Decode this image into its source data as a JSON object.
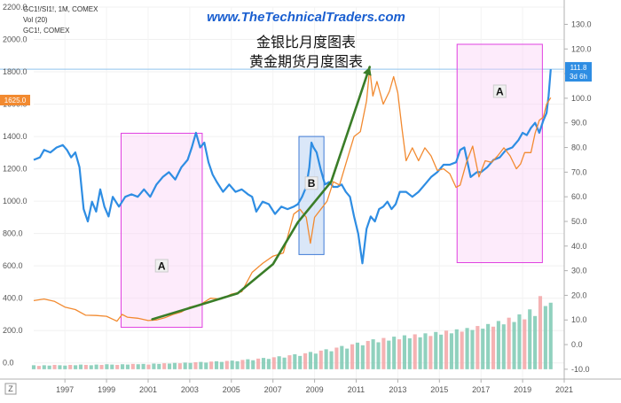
{
  "header": {
    "site": "www.TheTechnicalTraders.com",
    "line1": "GC1!/SI1!, 1M, COMEX",
    "line2": "Vol (20)",
    "line3": "GC1!, COMEX",
    "title1": "金银比月度图表",
    "title2": "黄金期货月度图表"
  },
  "colors": {
    "ratio": "#2e8de3",
    "gold": "#f28a30",
    "trend": "#3a7d28",
    "box_magenta": "#e040e0",
    "box_blue": "#3f7bd6",
    "hline": "#8fc3ee",
    "vol_up": "#7dc9b3",
    "vol_down": "#f3a4a6",
    "badge_gold": "#f28a30",
    "badge_ratio": "#2e8de3"
  },
  "chart_data": {
    "type": "line",
    "x_axis": {
      "label": "",
      "range": [
        1995.5,
        2021.0
      ],
      "ticks": [
        "1997",
        "1999",
        "2001",
        "2003",
        "2005",
        "2007",
        "2009",
        "2011",
        "2013",
        "2015",
        "2017",
        "2019",
        "2021"
      ],
      "corner_marker": "Z"
    },
    "left_axis": {
      "label": "",
      "range": [
        -100,
        2200
      ],
      "ticks": [
        "2200.0",
        "2000.0",
        "1800.0",
        "1600.0",
        "1400.0",
        "1200.0",
        "1000.0",
        "800.0",
        "600.0",
        "400.0",
        "200.0",
        "0.0"
      ],
      "current_badge": "1625.0"
    },
    "right_axis": {
      "label": "",
      "range": [
        -14,
        137
      ],
      "ticks": [
        "130.0",
        "120.0",
        "110.0",
        "100.0",
        "90.0",
        "80.0",
        "70.0",
        "60.0",
        "50.0",
        "40.0",
        "30.0",
        "20.0",
        "10.0",
        "0.0",
        "-10.0"
      ],
      "current_badge": "111.8",
      "current_badge_sub": "3d 6h",
      "horizontal_line": 111.8
    },
    "series": [
      {
        "axis": "right",
        "points": [
          [
            1995.5,
            75
          ],
          [
            1995.8,
            76
          ],
          [
            1996.0,
            79
          ],
          [
            1996.3,
            78
          ],
          [
            1996.6,
            80
          ],
          [
            1996.9,
            81
          ],
          [
            1997.1,
            79
          ],
          [
            1997.3,
            76
          ],
          [
            1997.5,
            78
          ],
          [
            1997.7,
            72
          ],
          [
            1997.9,
            55
          ],
          [
            1998.1,
            50
          ],
          [
            1998.3,
            58
          ],
          [
            1998.5,
            54
          ],
          [
            1998.7,
            63
          ],
          [
            1998.9,
            56
          ],
          [
            1999.1,
            52
          ],
          [
            1999.3,
            60
          ],
          [
            1999.6,
            56
          ],
          [
            1999.9,
            60
          ],
          [
            2000.2,
            61
          ],
          [
            2000.5,
            60
          ],
          [
            2000.8,
            63
          ],
          [
            2001.1,
            60
          ],
          [
            2001.4,
            65
          ],
          [
            2001.7,
            68
          ],
          [
            2002.0,
            70
          ],
          [
            2002.3,
            67
          ],
          [
            2002.6,
            72
          ],
          [
            2002.9,
            75
          ],
          [
            2003.1,
            80
          ],
          [
            2003.3,
            86
          ],
          [
            2003.5,
            80
          ],
          [
            2003.7,
            82
          ],
          [
            2003.9,
            74
          ],
          [
            2004.1,
            69
          ],
          [
            2004.3,
            66
          ],
          [
            2004.6,
            62
          ],
          [
            2004.9,
            65
          ],
          [
            2005.2,
            62
          ],
          [
            2005.5,
            63
          ],
          [
            2005.8,
            61
          ],
          [
            2006.0,
            60
          ],
          [
            2006.2,
            54
          ],
          [
            2006.5,
            58
          ],
          [
            2006.8,
            57
          ],
          [
            2007.1,
            53
          ],
          [
            2007.4,
            56
          ],
          [
            2007.7,
            55
          ],
          [
            2008.0,
            56
          ],
          [
            2008.2,
            57
          ],
          [
            2008.4,
            60
          ],
          [
            2008.6,
            64
          ],
          [
            2008.75,
            72
          ],
          [
            2008.85,
            82
          ],
          [
            2008.95,
            80
          ],
          [
            2009.1,
            78
          ],
          [
            2009.3,
            71
          ],
          [
            2009.5,
            65
          ],
          [
            2009.7,
            66
          ],
          [
            2009.9,
            64
          ],
          [
            2010.1,
            64
          ],
          [
            2010.3,
            65
          ],
          [
            2010.5,
            62
          ],
          [
            2010.7,
            60
          ],
          [
            2010.9,
            52
          ],
          [
            2011.1,
            45
          ],
          [
            2011.3,
            33
          ],
          [
            2011.5,
            47
          ],
          [
            2011.7,
            52
          ],
          [
            2011.9,
            50
          ],
          [
            2012.1,
            55
          ],
          [
            2012.3,
            56
          ],
          [
            2012.5,
            58
          ],
          [
            2012.7,
            55
          ],
          [
            2012.9,
            57
          ],
          [
            2013.1,
            62
          ],
          [
            2013.4,
            62
          ],
          [
            2013.7,
            60
          ],
          [
            2014.0,
            62
          ],
          [
            2014.3,
            65
          ],
          [
            2014.6,
            68
          ],
          [
            2014.9,
            70
          ],
          [
            2015.2,
            73
          ],
          [
            2015.5,
            73
          ],
          [
            2015.8,
            74
          ],
          [
            2016.0,
            79
          ],
          [
            2016.2,
            80
          ],
          [
            2016.5,
            68
          ],
          [
            2016.8,
            70
          ],
          [
            2017.0,
            70
          ],
          [
            2017.3,
            72
          ],
          [
            2017.6,
            75
          ],
          [
            2017.9,
            76
          ],
          [
            2018.2,
            79
          ],
          [
            2018.5,
            80
          ],
          [
            2018.8,
            83
          ],
          [
            2019.0,
            86
          ],
          [
            2019.2,
            85
          ],
          [
            2019.4,
            88
          ],
          [
            2019.6,
            90
          ],
          [
            2019.8,
            86
          ],
          [
            2020.0,
            91
          ],
          [
            2020.15,
            94
          ],
          [
            2020.25,
            101
          ],
          [
            2020.35,
            111.8
          ]
        ]
      },
      {
        "axis": "left",
        "points": [
          [
            1995.5,
            385
          ],
          [
            1996.0,
            395
          ],
          [
            1996.5,
            380
          ],
          [
            1997.0,
            345
          ],
          [
            1997.5,
            330
          ],
          [
            1998.0,
            295
          ],
          [
            1998.5,
            293
          ],
          [
            1999.0,
            288
          ],
          [
            1999.5,
            258
          ],
          [
            1999.75,
            300
          ],
          [
            2000.0,
            283
          ],
          [
            2000.5,
            276
          ],
          [
            2001.0,
            262
          ],
          [
            2001.4,
            266
          ],
          [
            2001.8,
            279
          ],
          [
            2002.2,
            300
          ],
          [
            2002.6,
            315
          ],
          [
            2003.0,
            345
          ],
          [
            2003.5,
            360
          ],
          [
            2004.0,
            400
          ],
          [
            2004.5,
            395
          ],
          [
            2005.0,
            425
          ],
          [
            2005.5,
            440
          ],
          [
            2006.0,
            560
          ],
          [
            2006.5,
            615
          ],
          [
            2007.0,
            660
          ],
          [
            2007.5,
            680
          ],
          [
            2008.0,
            920
          ],
          [
            2008.3,
            950
          ],
          [
            2008.6,
            900
          ],
          [
            2008.8,
            740
          ],
          [
            2009.0,
            900
          ],
          [
            2009.3,
            950
          ],
          [
            2009.6,
            1000
          ],
          [
            2009.9,
            1120
          ],
          [
            2010.2,
            1100
          ],
          [
            2010.5,
            1230
          ],
          [
            2010.9,
            1400
          ],
          [
            2011.2,
            1430
          ],
          [
            2011.5,
            1620
          ],
          [
            2011.65,
            1820
          ],
          [
            2011.8,
            1650
          ],
          [
            2012.0,
            1740
          ],
          [
            2012.3,
            1600
          ],
          [
            2012.6,
            1680
          ],
          [
            2012.8,
            1770
          ],
          [
            2013.0,
            1670
          ],
          [
            2013.2,
            1450
          ],
          [
            2013.4,
            1250
          ],
          [
            2013.7,
            1330
          ],
          [
            2014.0,
            1250
          ],
          [
            2014.3,
            1330
          ],
          [
            2014.6,
            1280
          ],
          [
            2014.9,
            1190
          ],
          [
            2015.2,
            1200
          ],
          [
            2015.5,
            1170
          ],
          [
            2015.8,
            1085
          ],
          [
            2016.0,
            1100
          ],
          [
            2016.3,
            1240
          ],
          [
            2016.6,
            1340
          ],
          [
            2016.9,
            1150
          ],
          [
            2017.2,
            1250
          ],
          [
            2017.5,
            1240
          ],
          [
            2017.8,
            1280
          ],
          [
            2018.1,
            1330
          ],
          [
            2018.4,
            1280
          ],
          [
            2018.7,
            1200
          ],
          [
            2018.9,
            1230
          ],
          [
            2019.1,
            1300
          ],
          [
            2019.4,
            1300
          ],
          [
            2019.6,
            1420
          ],
          [
            2019.8,
            1500
          ],
          [
            2020.0,
            1520
          ],
          [
            2020.15,
            1600
          ],
          [
            2020.35,
            1640
          ]
        ]
      }
    ],
    "volume": {
      "axis": "right",
      "years": [
        1995.5,
        2020.35
      ],
      "values": [
        1.2,
        1.0,
        1.2,
        1.1,
        1.3,
        1.2,
        1.1,
        1.3,
        1.2,
        1.4,
        1.3,
        1.2,
        1.4,
        1.3,
        1.5,
        1.4,
        1.3,
        1.5,
        1.4,
        1.6,
        1.5,
        1.6,
        1.4,
        1.7,
        1.6,
        1.8,
        1.7,
        1.9,
        1.8,
        2.0,
        1.9,
        2.1,
        2.2,
        2.0,
        2.3,
        2.4,
        2.2,
        2.5,
        2.6,
        2.4,
        2.8,
        3.0,
        2.7,
        3.2,
        3.4,
        3.1,
        3.6,
        3.9,
        3.5,
        4.2,
        4.5,
        4.0,
        4.8,
        5.2,
        4.7,
        5.6,
        6.0,
        5.4,
        6.5,
        7.0,
        6.2,
        7.5,
        8.0,
        7.2,
        8.5,
        9.0,
        8.1,
        9.4,
        8.6,
        9.8,
        9.0,
        10.2,
        9.3,
        10.5,
        9.6,
        10.8,
        10.0,
        11.2,
        10.4,
        11.6,
        10.8,
        12.0,
        11.3,
        12.4,
        11.8,
        13.0,
        12.2,
        13.6,
        12.8,
        14.5,
        13.5,
        15.5,
        14.2,
        16.5,
        15.0,
        18.0,
        16.0,
        22.0,
        19.0,
        20.0
      ]
    },
    "annotations": [
      {
        "type": "box",
        "label": "A",
        "x": [
          1999.7,
          2003.6
        ],
        "y_left": [
          220,
          1420
        ],
        "color": "magenta"
      },
      {
        "type": "box",
        "label": "B",
        "x": [
          2008.25,
          2009.45
        ],
        "y_left": [
          670,
          1400
        ],
        "color": "blue"
      },
      {
        "type": "box",
        "label": "A",
        "x": [
          2015.85,
          2019.95
        ],
        "y_left": [
          620,
          1970
        ],
        "color": "magenta"
      },
      {
        "type": "trendline",
        "points": [
          [
            2001.2,
            270
          ],
          [
            2003.0,
            340
          ],
          [
            2005.3,
            430
          ],
          [
            2007.0,
            610
          ],
          [
            2008.2,
            870
          ],
          [
            2009.8,
            1120
          ],
          [
            2011.65,
            1830
          ]
        ]
      }
    ]
  }
}
